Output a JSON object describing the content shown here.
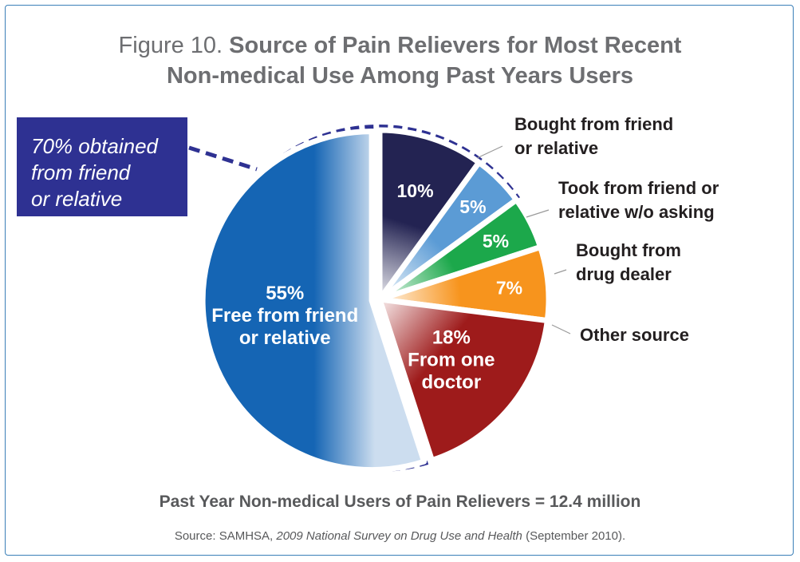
{
  "figure_label": "Figure 10.",
  "title_line1": "Source of Pain Relievers for Most Recent",
  "title_line2": "Non-medical Use Among Past Years Users",
  "callout": {
    "line1": "70% obtained",
    "line2": "from friend",
    "line3": "or relative",
    "color": "#2e3192"
  },
  "total_label": "Past Year Non-medical Users of Pain Relievers = 12.4 million",
  "source": {
    "prefix": "Source:  SAMHSA, ",
    "publication": "2009 National Survey on Drug Use and Health",
    "suffix": " (September 2010)."
  },
  "chart_data": {
    "type": "pie",
    "slices": [
      {
        "label": "Bought from friend or relative",
        "value": 10,
        "value_label": "10%",
        "color": "#232352",
        "outside_lines": [
          "Bought from friend",
          "or relative"
        ]
      },
      {
        "label": "Took from friend or relative w/o asking",
        "value": 5,
        "value_label": "5%",
        "color": "#5b9bd5",
        "outside_lines": [
          "Took from friend or",
          "relative w/o asking"
        ]
      },
      {
        "label": "Bought from drug dealer",
        "value": 5,
        "value_label": "5%",
        "color": "#1ca84b",
        "outside_lines": [
          "Bought from",
          "drug dealer"
        ]
      },
      {
        "label": "Other source",
        "value": 7,
        "value_label": "7%",
        "color": "#f7941d",
        "outside_lines": [
          "Other source"
        ]
      },
      {
        "label": "From one doctor",
        "value": 18,
        "value_label": "18%",
        "inside_lines": [
          "From one",
          "doctor"
        ],
        "color": "#9e1b1b"
      },
      {
        "label": "Free from friend or relative",
        "value": 55,
        "value_label": "55%",
        "inside_lines": [
          "Free from friend",
          "or relative"
        ],
        "color": "#1565b4"
      }
    ]
  }
}
